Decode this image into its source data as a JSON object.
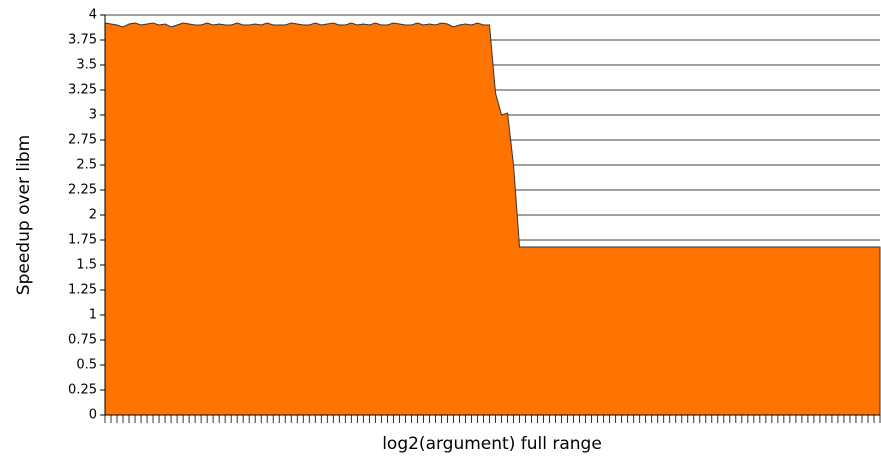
{
  "chart_data": {
    "type": "area",
    "x_label": "log2(argument) full range",
    "y_label": "Speedup over libm",
    "categories": [
      null,
      null,
      null,
      null,
      null,
      null,
      null,
      null,
      null,
      null,
      null,
      null,
      null,
      null,
      null,
      null,
      null,
      null,
      null,
      null,
      null,
      null,
      null,
      null,
      null,
      null,
      null,
      null,
      null,
      null,
      null,
      null,
      null,
      null,
      null,
      null,
      null,
      null,
      null,
      null,
      null,
      null,
      null,
      null,
      null,
      null,
      null,
      null,
      null,
      null,
      null,
      null,
      null,
      null,
      null,
      null,
      null,
      null,
      null,
      null,
      null,
      null,
      null,
      null,
      null,
      null,
      null,
      null,
      null,
      null,
      null,
      null,
      null,
      null,
      null,
      null,
      null,
      null,
      null,
      null,
      null,
      null,
      null,
      null,
      null,
      null,
      null,
      null,
      null,
      null,
      null,
      null,
      null,
      null,
      null,
      null,
      null,
      null,
      null,
      null,
      null,
      null,
      null,
      null,
      null,
      null,
      null,
      null,
      null,
      null,
      null,
      null,
      null,
      null,
      null,
      null,
      null,
      null,
      null,
      null,
      null,
      null,
      null,
      null,
      null,
      null,
      null,
      null,
      null,
      null
    ],
    "values": [
      3.92,
      3.91,
      3.9,
      3.88,
      3.91,
      3.92,
      3.9,
      3.91,
      3.92,
      3.9,
      3.91,
      3.88,
      3.9,
      3.92,
      3.91,
      3.9,
      3.9,
      3.92,
      3.9,
      3.91,
      3.9,
      3.9,
      3.92,
      3.9,
      3.9,
      3.91,
      3.9,
      3.92,
      3.9,
      3.9,
      3.9,
      3.92,
      3.91,
      3.9,
      3.9,
      3.92,
      3.9,
      3.91,
      3.92,
      3.9,
      3.9,
      3.92,
      3.9,
      3.91,
      3.9,
      3.92,
      3.9,
      3.9,
      3.92,
      3.91,
      3.9,
      3.9,
      3.92,
      3.9,
      3.91,
      3.9,
      3.92,
      3.91,
      3.88,
      3.9,
      3.91,
      3.9,
      3.92,
      3.9,
      3.9,
      3.22,
      3.0,
      3.02,
      2.5,
      1.68,
      1.68,
      1.68,
      1.68,
      1.68,
      1.68,
      1.68,
      1.68,
      1.68,
      1.68,
      1.68,
      1.68,
      1.68,
      1.68,
      1.68,
      1.68,
      1.68,
      1.68,
      1.68,
      1.68,
      1.68,
      1.68,
      1.68,
      1.68,
      1.68,
      1.68,
      1.68,
      1.68,
      1.68,
      1.68,
      1.68,
      1.68,
      1.68,
      1.68,
      1.68,
      1.68,
      1.68,
      1.68,
      1.68,
      1.68,
      1.68,
      1.68,
      1.68,
      1.68,
      1.68,
      1.68,
      1.68,
      1.68,
      1.68,
      1.68,
      1.68,
      1.68,
      1.68,
      1.68,
      1.68,
      1.68,
      1.68,
      1.68,
      1.68,
      1.68,
      1.68
    ],
    "color": "#ff7300",
    "ylim": [
      0,
      4
    ],
    "yticks": [
      0,
      0.25,
      0.5,
      0.75,
      1,
      1.25,
      1.5,
      1.75,
      2,
      2.25,
      2.5,
      2.75,
      3,
      3.25,
      3.5,
      3.75,
      4
    ],
    "grid": true
  }
}
